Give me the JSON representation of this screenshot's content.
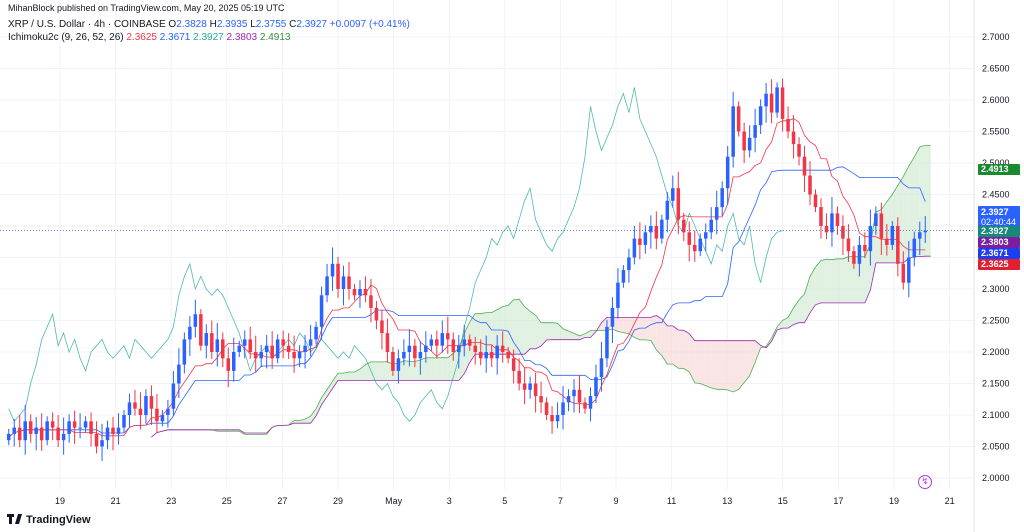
{
  "header": {
    "publisher": "MihanBlock published on TradingView.com, May 20, 2025 05:19 UTC",
    "symbol": "XRP / U.S. Dollar · 4h · COINBASE",
    "o_label": "O",
    "o_value": "2.3828",
    "h_label": "H",
    "h_value": "2.3935",
    "l_label": "L",
    "l_value": "2.3755",
    "c_label": "C",
    "c_value": "2.3927",
    "change": "+0.0097 (+0.41%)",
    "indicator_name": "Ichimoku2c (9, 26, 52, 26)",
    "ind_values": [
      "2.3625",
      "2.3671",
      "2.3927",
      "2.3803",
      "2.4913"
    ]
  },
  "badges": {
    "span_b": "2.4913",
    "price": "2.3927",
    "countdown": "02:40:44",
    "close": "2.3927",
    "lead_a": "2.3803",
    "kijun": "2.3671",
    "tenkan": "2.3625"
  },
  "footer": {
    "logo": "TradingView"
  },
  "colors": {
    "up": "#2962ff",
    "down": "#f23645",
    "tenkan": "#f23645",
    "kijun": "#2962ff",
    "chikou": "#26a69a",
    "span_a": "#4caf50",
    "span_b": "#9c27b0",
    "cloud_green": "#c8e6c9",
    "cloud_red": "#f5d0d0"
  },
  "chart_data": {
    "type": "candlestick",
    "timeframe": "4h",
    "ylim": [
      1.97,
      2.72
    ],
    "y_ticks": [
      "2.7000",
      "2.6500",
      "2.6000",
      "2.5500",
      "2.5000",
      "2.4500",
      "2.4000",
      "2.3500",
      "2.3000",
      "2.2500",
      "2.2000",
      "2.1500",
      "2.1000",
      "2.0500",
      "2.0000"
    ],
    "x_ticks": [
      "19",
      "21",
      "23",
      "25",
      "27",
      "29",
      "May",
      "3",
      "5",
      "7",
      "9",
      "11",
      "13",
      "15",
      "17",
      "19",
      "21"
    ],
    "last_price": 2.3927,
    "close": [
      2.07,
      2.08,
      2.06,
      2.09,
      2.07,
      2.08,
      2.06,
      2.09,
      2.08,
      2.06,
      2.07,
      2.09,
      2.08,
      2.08,
      2.09,
      2.07,
      2.05,
      2.06,
      2.08,
      2.07,
      2.08,
      2.1,
      2.12,
      2.11,
      2.1,
      2.13,
      2.11,
      2.09,
      2.1,
      2.11,
      2.15,
      2.18,
      2.22,
      2.24,
      2.26,
      2.21,
      2.23,
      2.2,
      2.22,
      2.19,
      2.17,
      2.2,
      2.21,
      2.22,
      2.2,
      2.19,
      2.2,
      2.21,
      2.19,
      2.22,
      2.21,
      2.2,
      2.19,
      2.2,
      2.21,
      2.22,
      2.24,
      2.29,
      2.32,
      2.34,
      2.3,
      2.32,
      2.3,
      2.29,
      2.3,
      2.29,
      2.27,
      2.25,
      2.23,
      2.2,
      2.17,
      2.19,
      2.2,
      2.21,
      2.19,
      2.2,
      2.21,
      2.22,
      2.21,
      2.23,
      2.22,
      2.2,
      2.21,
      2.22,
      2.21,
      2.2,
      2.19,
      2.2,
      2.19,
      2.21,
      2.2,
      2.19,
      2.17,
      2.15,
      2.14,
      2.15,
      2.13,
      2.12,
      2.1,
      2.09,
      2.1,
      2.12,
      2.13,
      2.14,
      2.12,
      2.11,
      2.13,
      2.16,
      2.19,
      2.24,
      2.27,
      2.31,
      2.33,
      2.35,
      2.38,
      2.37,
      2.39,
      2.4,
      2.38,
      2.41,
      2.44,
      2.46,
      2.41,
      2.39,
      2.37,
      2.36,
      2.38,
      2.39,
      2.41,
      2.43,
      2.46,
      2.51,
      2.59,
      2.55,
      2.52,
      2.54,
      2.56,
      2.59,
      2.61,
      2.58,
      2.62,
      2.57,
      2.55,
      2.53,
      2.51,
      2.48,
      2.45,
      2.43,
      2.4,
      2.39,
      2.42,
      2.4,
      2.38,
      2.36,
      2.34,
      2.37,
      2.36,
      2.4,
      2.42,
      2.38,
      2.37,
      2.4,
      2.34,
      2.31,
      2.35,
      2.38,
      2.39,
      2.3927
    ]
  }
}
